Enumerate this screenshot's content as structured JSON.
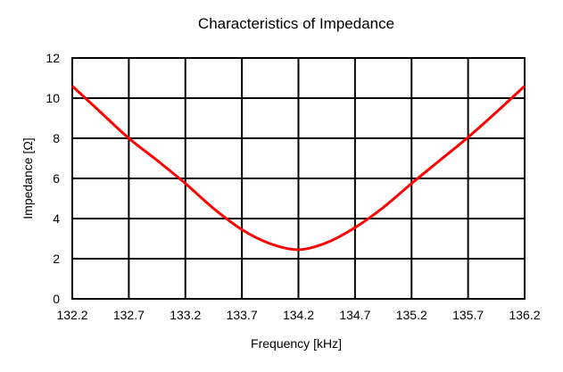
{
  "chart_data": {
    "type": "line",
    "title": "Characteristics of Impedance",
    "xlabel": "Frequency [kHz]",
    "ylabel": "Impedance [Ω]",
    "xlim": [
      132.2,
      136.2
    ],
    "ylim": [
      0,
      12
    ],
    "x_ticks": [
      "132.2",
      "132.7",
      "133.2",
      "133.7",
      "134.2",
      "134.7",
      "135.2",
      "135.7",
      "136.2"
    ],
    "y_ticks": [
      "0",
      "2",
      "4",
      "6",
      "8",
      "10",
      "12"
    ],
    "grid": true,
    "legend": "none",
    "series": [
      {
        "color": "#ff0000",
        "x": [
          132.2,
          132.45,
          132.7,
          132.95,
          133.2,
          133.45,
          133.7,
          133.95,
          134.2,
          134.45,
          134.7,
          134.95,
          135.2,
          135.45,
          135.7,
          135.95,
          136.2
        ],
        "y": [
          10.6,
          9.3,
          8.0,
          6.9,
          5.75,
          4.5,
          3.45,
          2.75,
          2.45,
          2.8,
          3.55,
          4.55,
          5.75,
          6.9,
          8.05,
          9.3,
          10.6
        ]
      }
    ]
  }
}
